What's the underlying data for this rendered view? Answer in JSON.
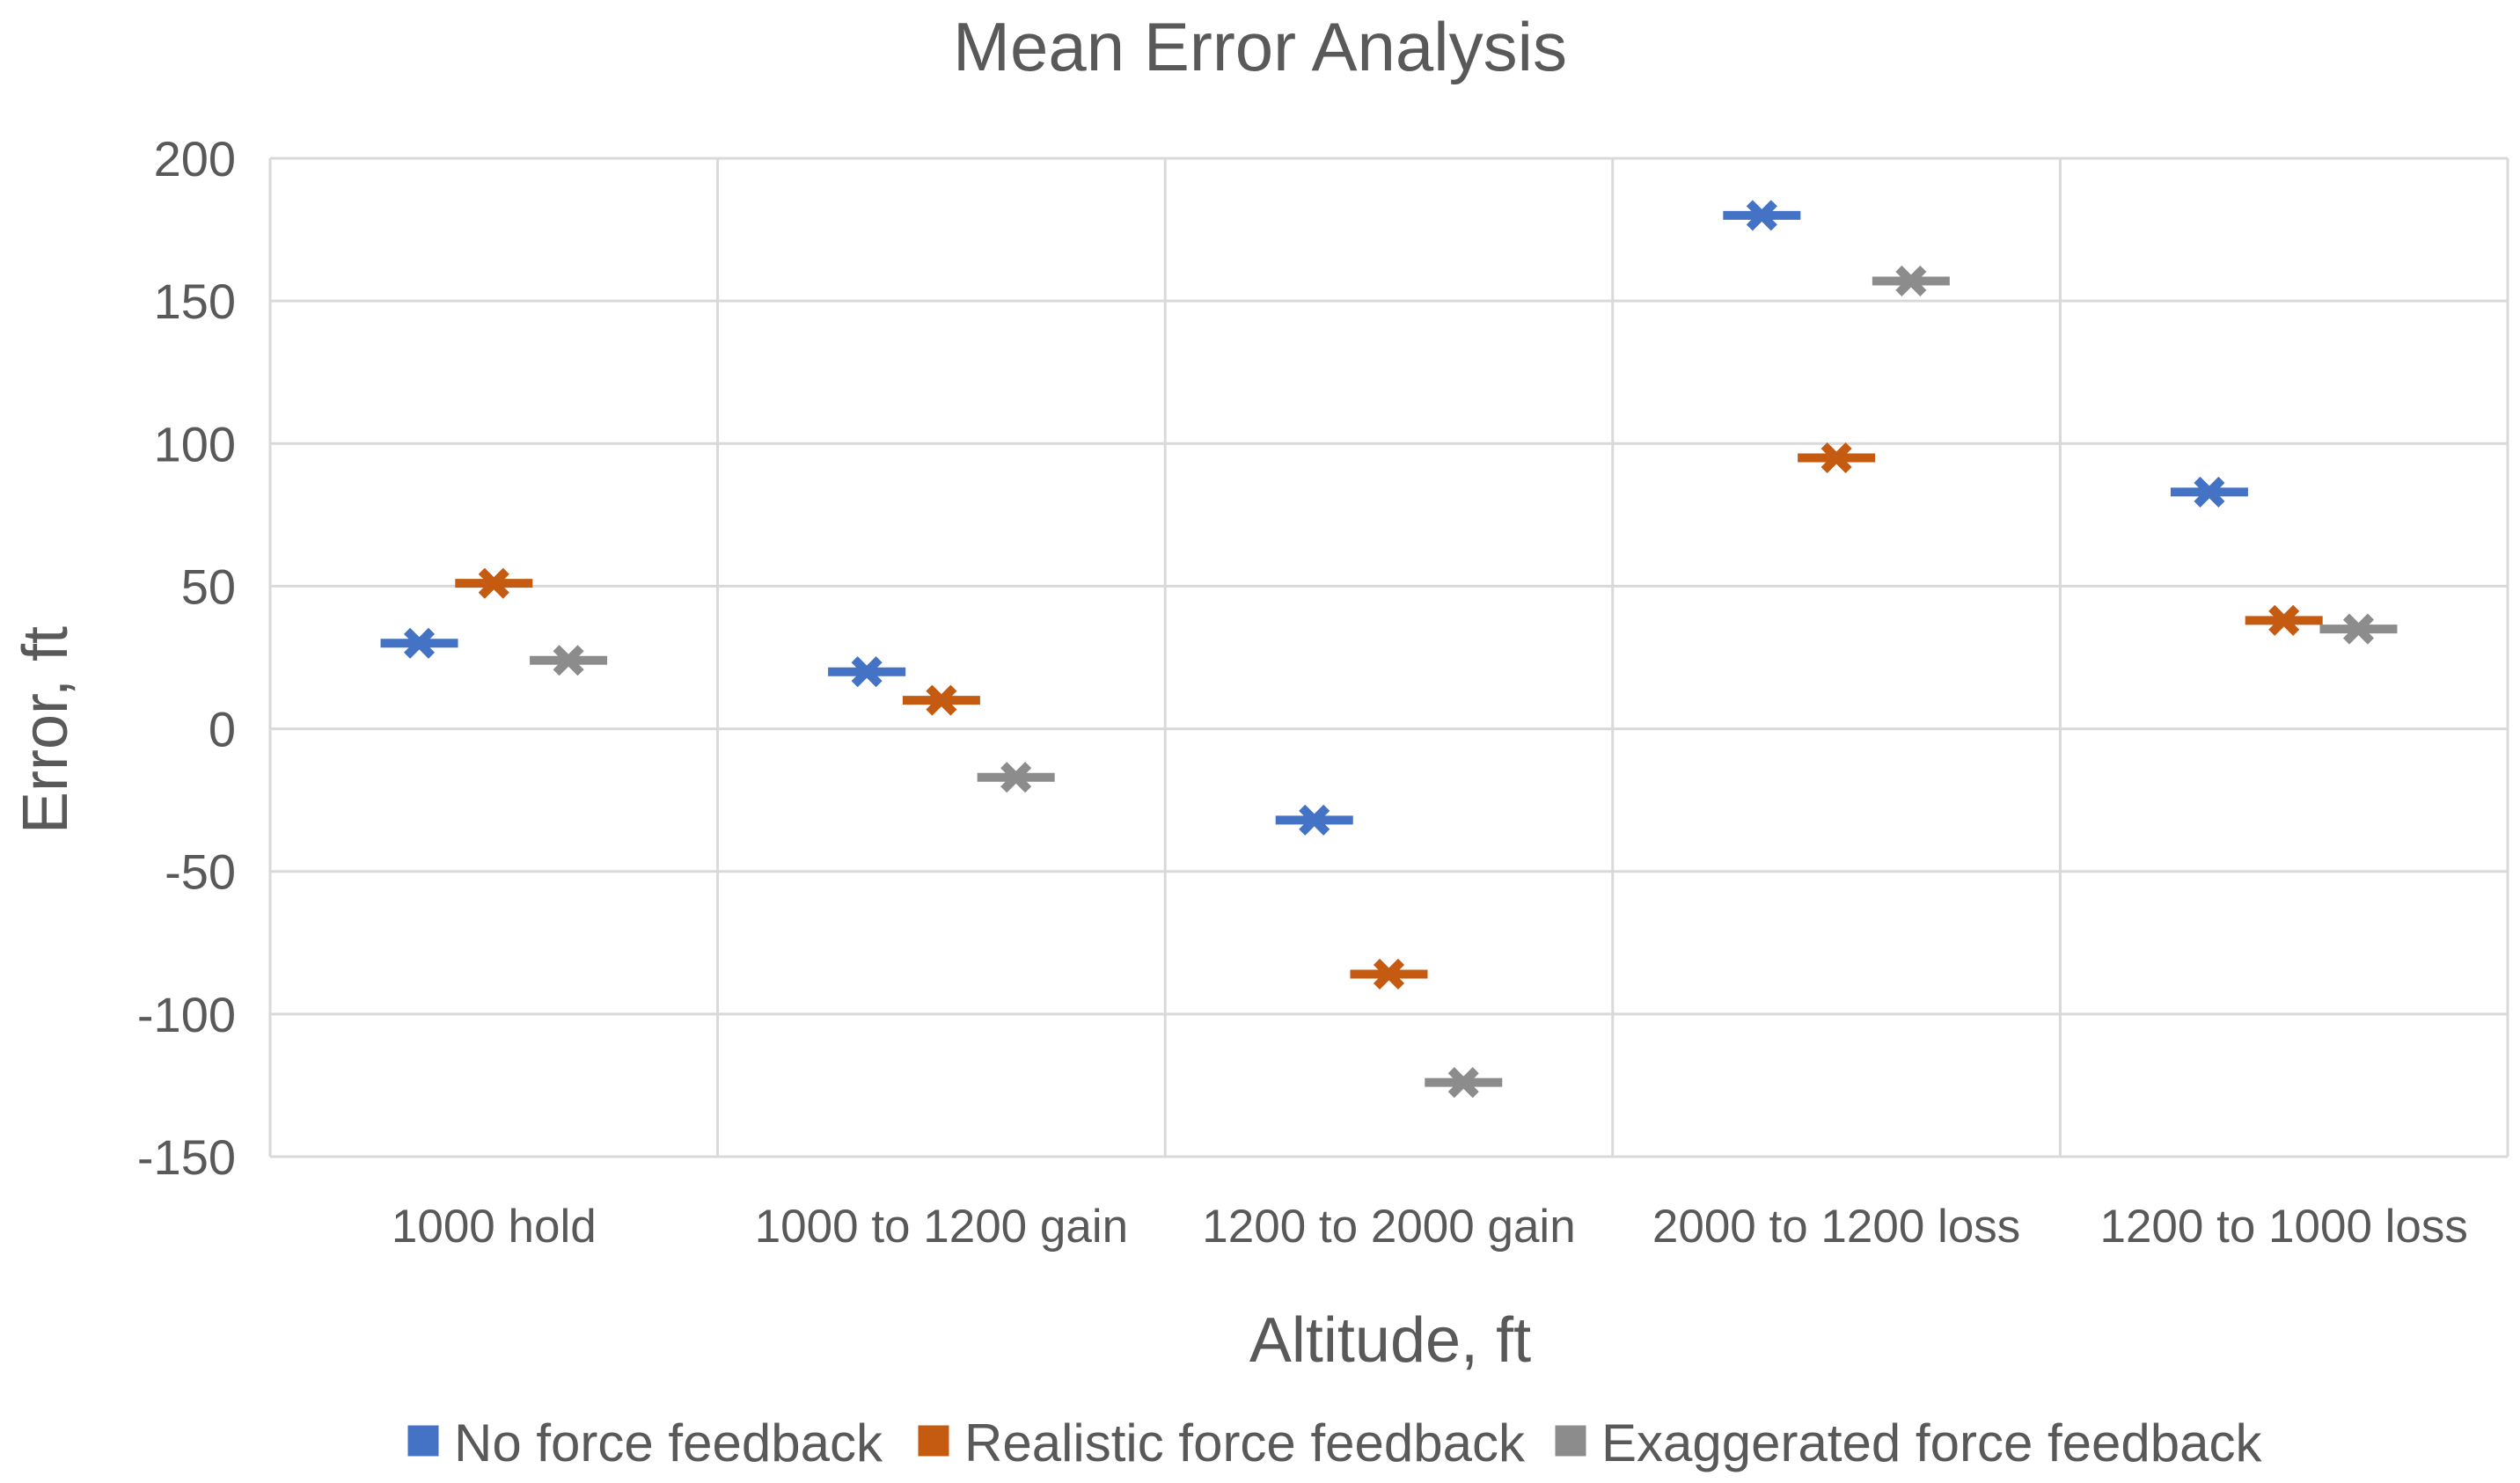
{
  "chart_data": {
    "type": "scatter",
    "title": "Mean Error Analysis",
    "xlabel": "Altitude, ft",
    "ylabel": "Error, ft",
    "categories": [
      "1000 hold",
      "1000 to 1200 gain",
      "1200 to 2000 gain",
      "2000 to 1200 loss",
      "1200 to 1000 loss"
    ],
    "ylim": [
      -150,
      200
    ],
    "yticks": [
      200,
      150,
      100,
      50,
      0,
      -50,
      -100,
      -150
    ],
    "grid": true,
    "legend_position": "bottom",
    "marker": "dash-with-x",
    "series": [
      {
        "name": "No force feedback",
        "color": "#4472c4",
        "values": [
          30,
          20,
          -32,
          180,
          83
        ]
      },
      {
        "name": "Realistic force feedback",
        "color": "#c55a11",
        "values": [
          51,
          10,
          -86,
          95,
          38
        ]
      },
      {
        "name": "Exaggerated force feedback",
        "color": "#8c8c8c",
        "values": [
          24,
          -17,
          -124,
          157,
          35
        ]
      }
    ]
  }
}
